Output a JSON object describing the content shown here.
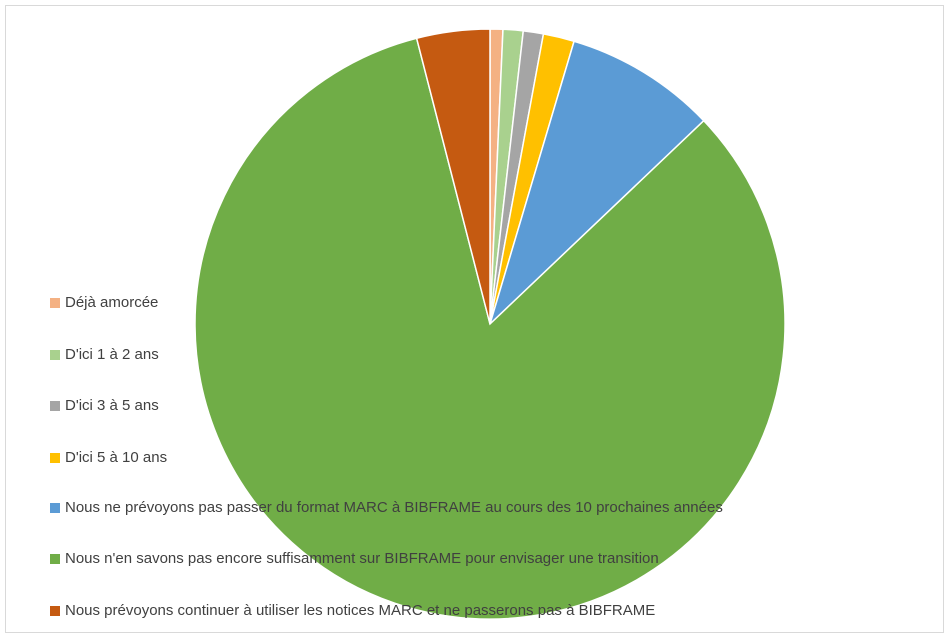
{
  "chart_data": {
    "type": "pie",
    "legend_position": "left",
    "slices": [
      {
        "label": "Déjà amorcée",
        "value": 0.7,
        "color": "#f4b183"
      },
      {
        "label": "D'ici 1 à 2 ans",
        "value": 1.1,
        "color": "#a9d18e"
      },
      {
        "label": "D'ici 3 à 5 ans",
        "value": 1.1,
        "color": "#a5a5a5"
      },
      {
        "label": "D'ici  5 à 10 ans",
        "value": 1.7,
        "color": "#ffc000"
      },
      {
        "label": "Nous ne prévoyons pas passer du format MARC à BIBFRAME au cours des 10 prochaines années",
        "value": 8.3,
        "color": "#5b9bd5"
      },
      {
        "label": "Nous n'en savons pas encore suffisamment sur BIBFRAME pour envisager une transition",
        "value": 83.1,
        "color": "#70ad47"
      },
      {
        "label": "Nous prévoyons continuer à utiliser les notices MARC et ne passerons pas à BIBFRAME",
        "value": 4.0,
        "color": "#c55a11"
      }
    ]
  }
}
